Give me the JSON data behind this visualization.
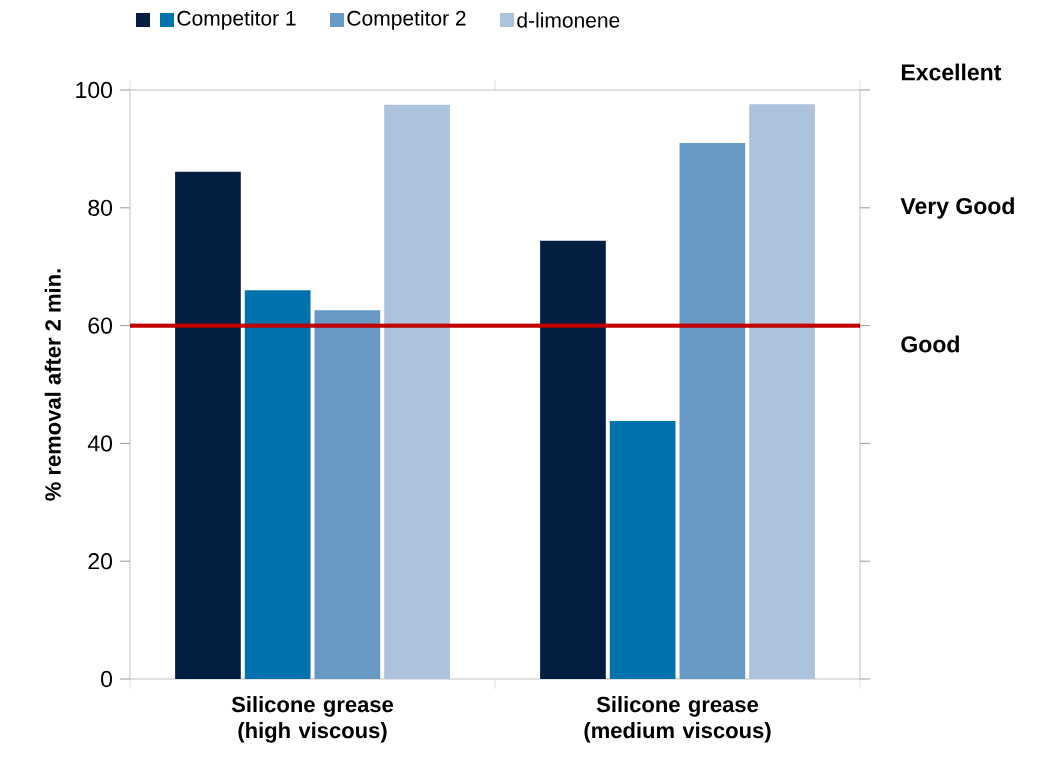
{
  "chart_data": {
    "type": "bar",
    "ylabel": "% removal after 2 min.",
    "categories": [
      "Silicone grease (high viscous)",
      "Silicone grease (medium viscous)"
    ],
    "series": [
      {
        "color": "#041e42",
        "values": [
          86.1,
          74.4
        ]
      },
      {
        "name": "Competitor 1",
        "color": "#0072ad",
        "values": [
          66.0,
          43.8
        ]
      },
      {
        "name": "Competitor 2",
        "color": "#6898c4",
        "values": [
          62.6,
          91.0
        ]
      },
      {
        "name": "d-limonene",
        "color": "#adc2dc",
        "values": [
          97.5,
          97.6
        ]
      }
    ],
    "ylim": [
      0,
      100
    ],
    "yticks": [
      0,
      20,
      40,
      60,
      80,
      100
    ],
    "annotations": [
      "Excellent",
      "Very Good",
      "Good"
    ],
    "ref_lines": [
      {
        "axis": "y",
        "value": 60,
        "color": "#c00000"
      }
    ],
    "legend": "top",
    "grid": false
  }
}
